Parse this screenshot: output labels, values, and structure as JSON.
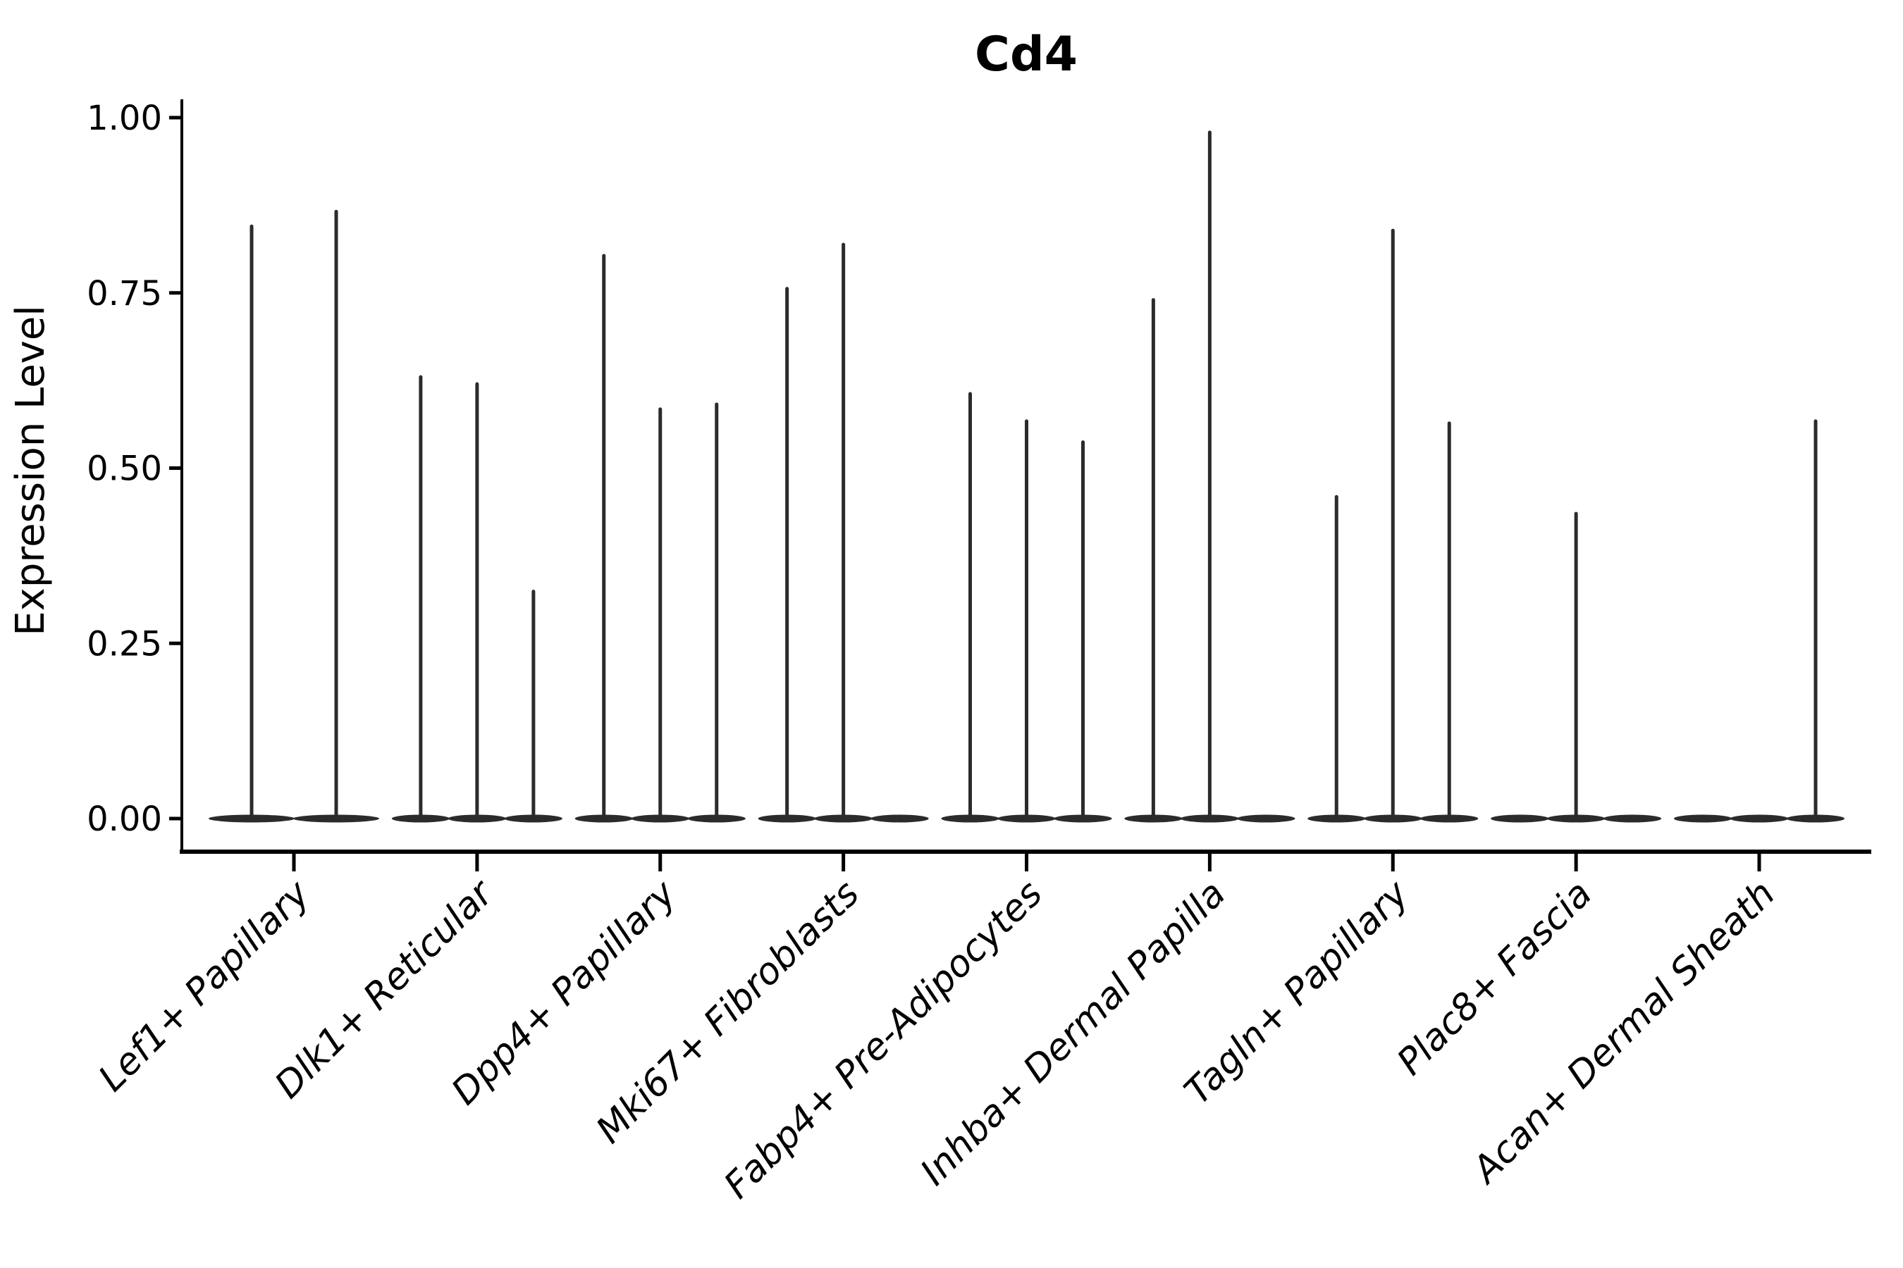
{
  "chart_data": {
    "type": "violin",
    "title": "Cd4",
    "ylabel": "Expression Level",
    "xlabel": "",
    "ylim": [
      0.0,
      1.0
    ],
    "yticks": [
      "0.00",
      "0.25",
      "0.50",
      "0.75",
      "1.00"
    ],
    "grid": false,
    "legend_position": "none",
    "x_label_angle_deg": 45,
    "ink_color": "#2b2b2b",
    "axis_color": "#000000",
    "background_color": "#ffffff",
    "groups": [
      {
        "label": "Lef1+ Papillary",
        "spikes": [
          0.845,
          0.866
        ]
      },
      {
        "label": "Dlk1+ Reticular",
        "spikes": [
          0.63,
          0.62,
          0.324
        ]
      },
      {
        "label": "Dpp4+ Papillary",
        "spikes": [
          0.803,
          0.584,
          0.591
        ]
      },
      {
        "label": "Mki67+ Fibroblasts",
        "spikes": [
          0.756,
          0.819,
          null
        ]
      },
      {
        "label": "Fabp4+ Pre-Adipocytes",
        "spikes": [
          0.606,
          0.567,
          0.537
        ]
      },
      {
        "label": "Inhba+ Dermal Papilla",
        "spikes": [
          0.74,
          0.979,
          null
        ]
      },
      {
        "label": "Tagln+ Papillary",
        "spikes": [
          0.459,
          0.839,
          0.564
        ]
      },
      {
        "label": "Plac8+ Fascia",
        "spikes": [
          null,
          0.435,
          null
        ]
      },
      {
        "label": "Acan+ Dermal Sheath",
        "spikes": [
          null,
          null,
          0.567
        ]
      }
    ]
  }
}
